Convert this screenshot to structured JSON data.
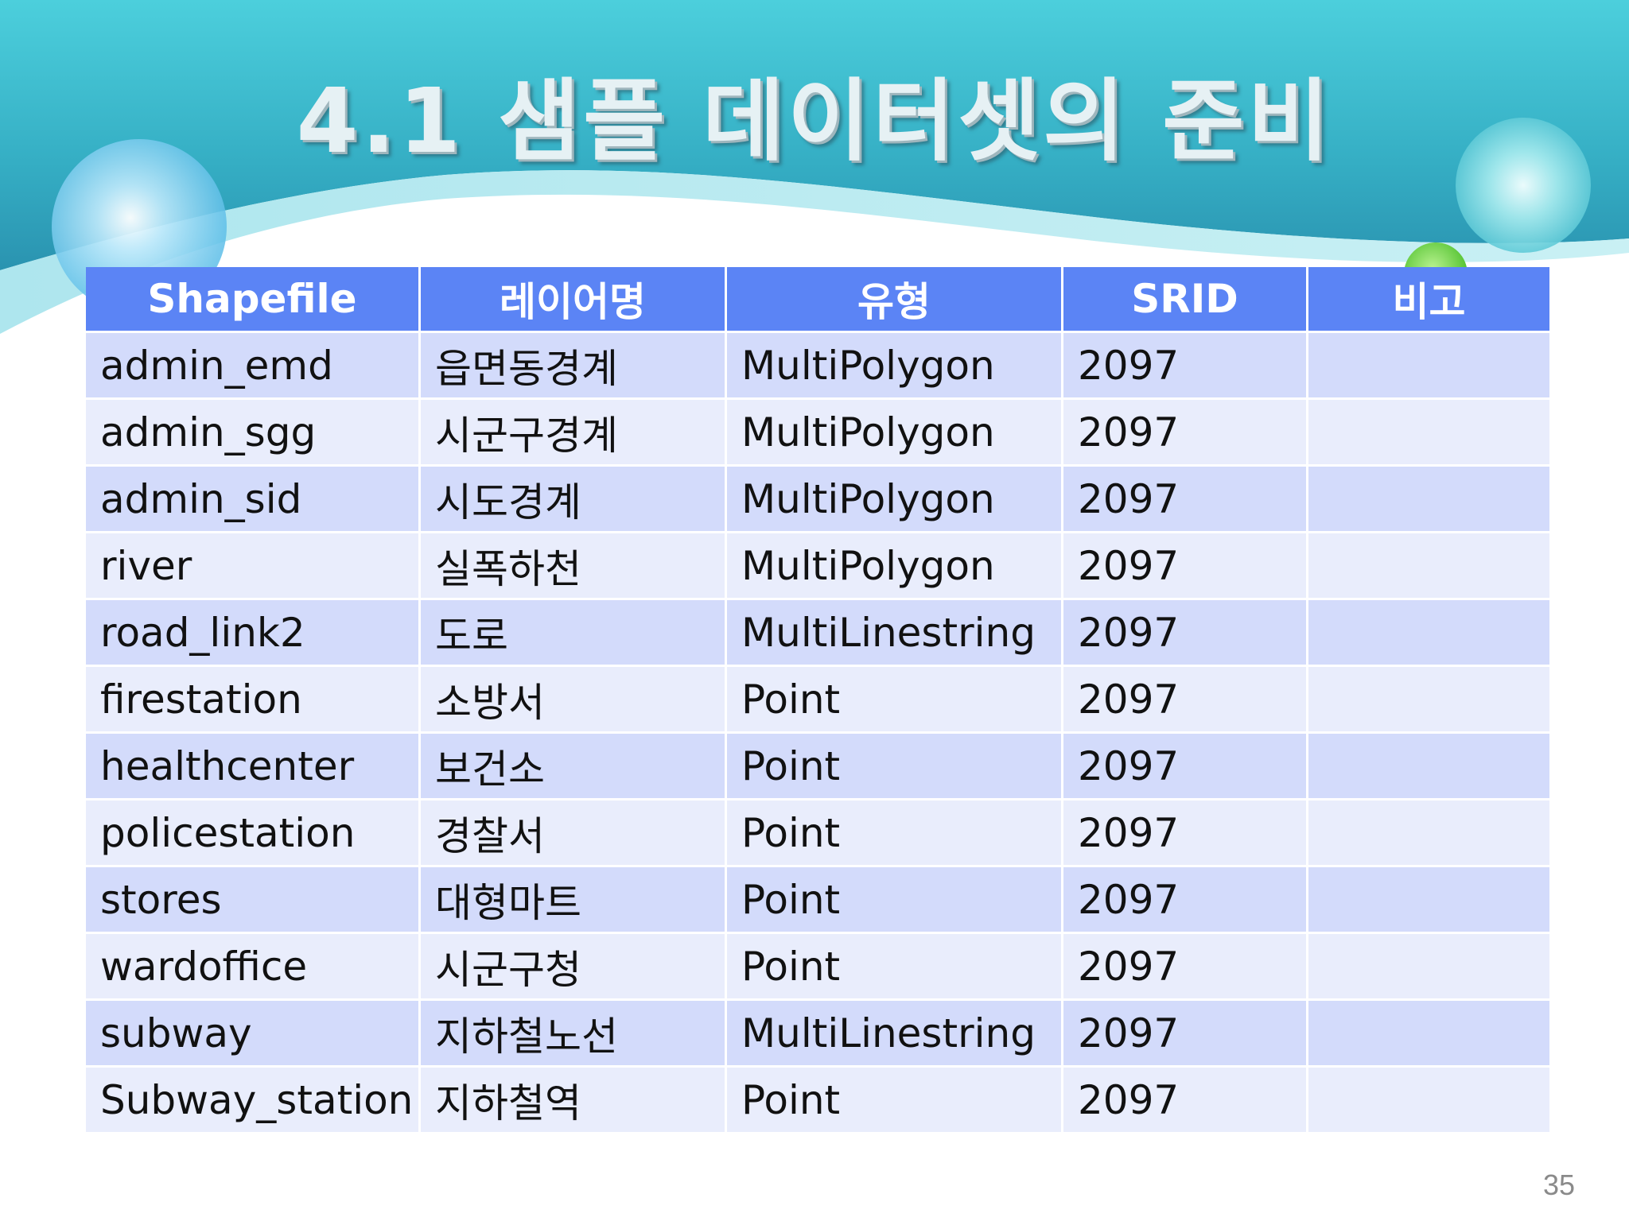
{
  "slide": {
    "title": "4.1 샘플 데이터셋의 준비",
    "page_number": "35"
  },
  "table": {
    "headers": [
      "Shapefile",
      "레이어명",
      "유형",
      "SRID",
      "비고"
    ],
    "rows": [
      [
        "admin_emd",
        "읍면동경계",
        "MultiPolygon",
        "2097",
        ""
      ],
      [
        "admin_sgg",
        "시군구경계",
        "MultiPolygon",
        "2097",
        ""
      ],
      [
        "admin_sid",
        "시도경계",
        "MultiPolygon",
        "2097",
        ""
      ],
      [
        "river",
        "실폭하천",
        "MultiPolygon",
        "2097",
        ""
      ],
      [
        "road_link2",
        "도로",
        "MultiLinestring",
        "2097",
        ""
      ],
      [
        "firestation",
        "소방서",
        "Point",
        "2097",
        ""
      ],
      [
        "healthcenter",
        "보건소",
        "Point",
        "2097",
        ""
      ],
      [
        "policestation",
        "경찰서",
        "Point",
        "2097",
        ""
      ],
      [
        "stores",
        "대형마트",
        "Point",
        "2097",
        ""
      ],
      [
        "wardoffice",
        "시군구청",
        "Point",
        "2097",
        ""
      ],
      [
        "subway",
        "지하철노선",
        "MultiLinestring",
        "2097",
        ""
      ],
      [
        "Subway_station",
        "지하철역",
        "Point",
        "2097",
        ""
      ]
    ]
  },
  "colors": {
    "header_bg": "#5b84f5",
    "row_odd_bg": "#d3dbfb",
    "row_even_bg": "#e9edfc",
    "banner_teal": "#3cbfcf"
  }
}
